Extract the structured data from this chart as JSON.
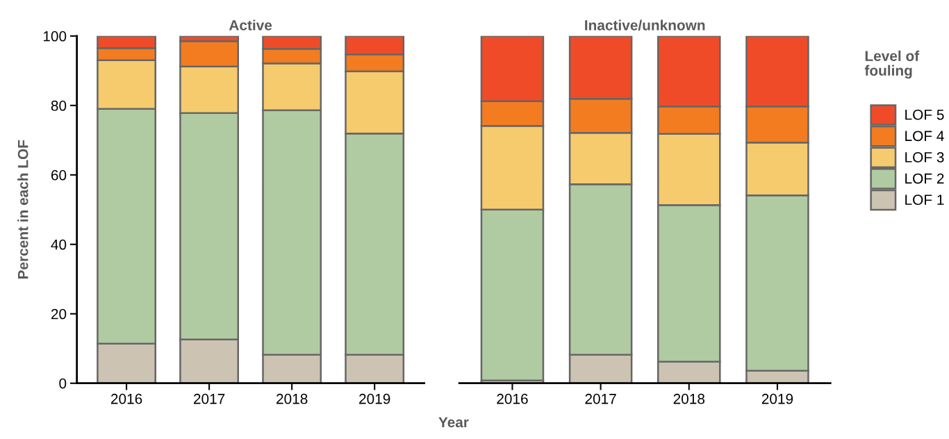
{
  "chart_data": [
    {
      "type": "bar",
      "stacked": true,
      "title": "Active",
      "xlabel": "Year",
      "ylabel": "Percent in each LOF",
      "categories": [
        "2016",
        "2017",
        "2018",
        "2019"
      ],
      "ylim": [
        0,
        100
      ],
      "yticks": [
        0,
        20,
        40,
        60,
        80,
        100
      ],
      "legend": "right",
      "legend_title": "Level of fouling",
      "series": [
        {
          "name": "LOF 1",
          "color": "#ccc3b3",
          "values": [
            11.4,
            12.6,
            8.2,
            8.2
          ]
        },
        {
          "name": "LOF 2",
          "color": "#b0caa2",
          "values": [
            67.6,
            65.2,
            70.4,
            63.7
          ]
        },
        {
          "name": "LOF 3",
          "color": "#f5cb6e",
          "values": [
            14.0,
            13.4,
            13.5,
            17.9
          ]
        },
        {
          "name": "LOF 4",
          "color": "#f47c20",
          "values": [
            3.5,
            7.3,
            4.2,
            4.9
          ]
        },
        {
          "name": "LOF 5",
          "color": "#f04b28",
          "values": [
            3.5,
            1.5,
            3.7,
            5.3
          ]
        }
      ]
    },
    {
      "type": "bar",
      "stacked": true,
      "title": "Inactive/unknown",
      "categories": [
        "2016",
        "2017",
        "2018",
        "2019"
      ],
      "ylim": [
        0,
        100
      ],
      "yticks": [
        0,
        20,
        40,
        60,
        80,
        100
      ],
      "tick_labels": "x",
      "series": [
        {
          "color": "#ccc3b3",
          "values": [
            0.8,
            8.2,
            6.2,
            3.6
          ]
        },
        {
          "color": "#b0caa2",
          "values": [
            49.2,
            49.1,
            45.1,
            50.5
          ]
        },
        {
          "color": "#f5cb6e",
          "values": [
            24.1,
            14.8,
            20.5,
            15.2
          ]
        },
        {
          "color": "#f47c20",
          "values": [
            7.1,
            9.8,
            7.9,
            10.4
          ]
        },
        {
          "color": "#f04b28",
          "values": [
            18.8,
            18.1,
            20.3,
            20.3
          ]
        }
      ]
    }
  ]
}
